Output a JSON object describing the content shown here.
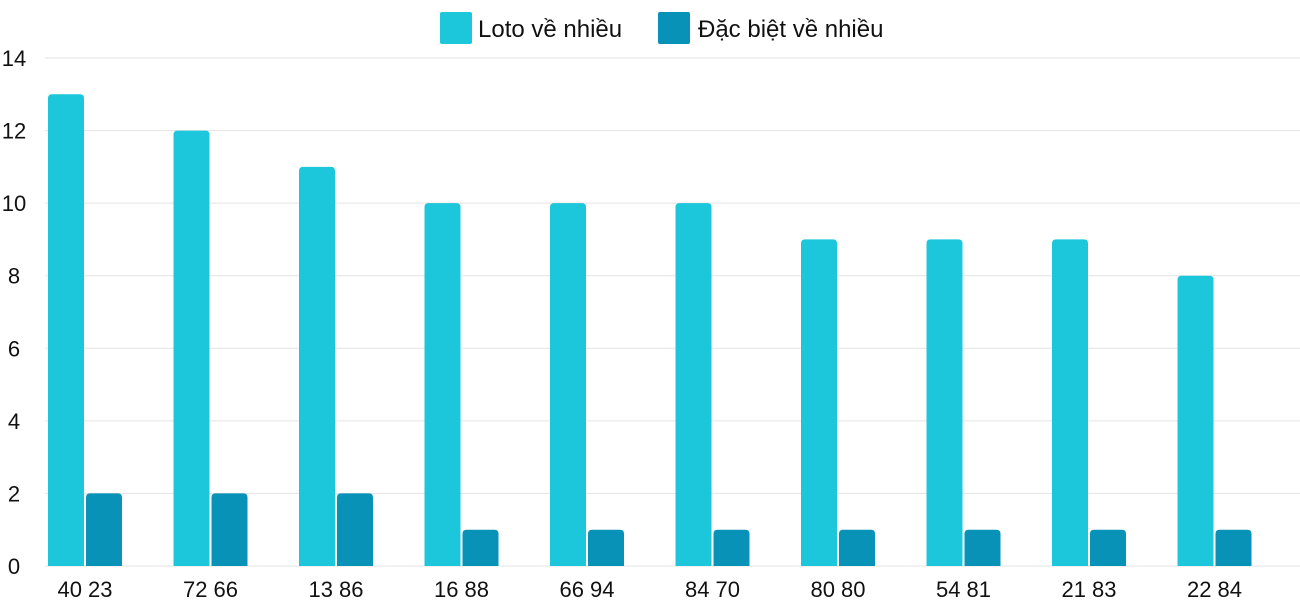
{
  "colors": {
    "loto": "#1cc7dc",
    "dacbiet": "#0892b8",
    "grid": "#e3e3e3",
    "text": "#111111"
  },
  "chart_data": {
    "type": "bar",
    "title": "",
    "xlabel": "",
    "ylabel": "",
    "categories": [
      "40 23",
      "72 66",
      "13 86",
      "16 88",
      "66 94",
      "84 70",
      "80 80",
      "54 81",
      "21 83",
      "22 84"
    ],
    "series": [
      {
        "name": "Loto về nhiều",
        "values": [
          13,
          12,
          11,
          10,
          10,
          10,
          9,
          9,
          9,
          8
        ]
      },
      {
        "name": "Đặc biệt về nhiều",
        "values": [
          2,
          2,
          2,
          1,
          1,
          1,
          1,
          1,
          1,
          1
        ]
      }
    ],
    "ylim": [
      0,
      14
    ],
    "yticks": [
      0,
      2,
      4,
      6,
      8,
      10,
      12,
      14
    ],
    "grid": true,
    "legend_position": "top-center"
  }
}
